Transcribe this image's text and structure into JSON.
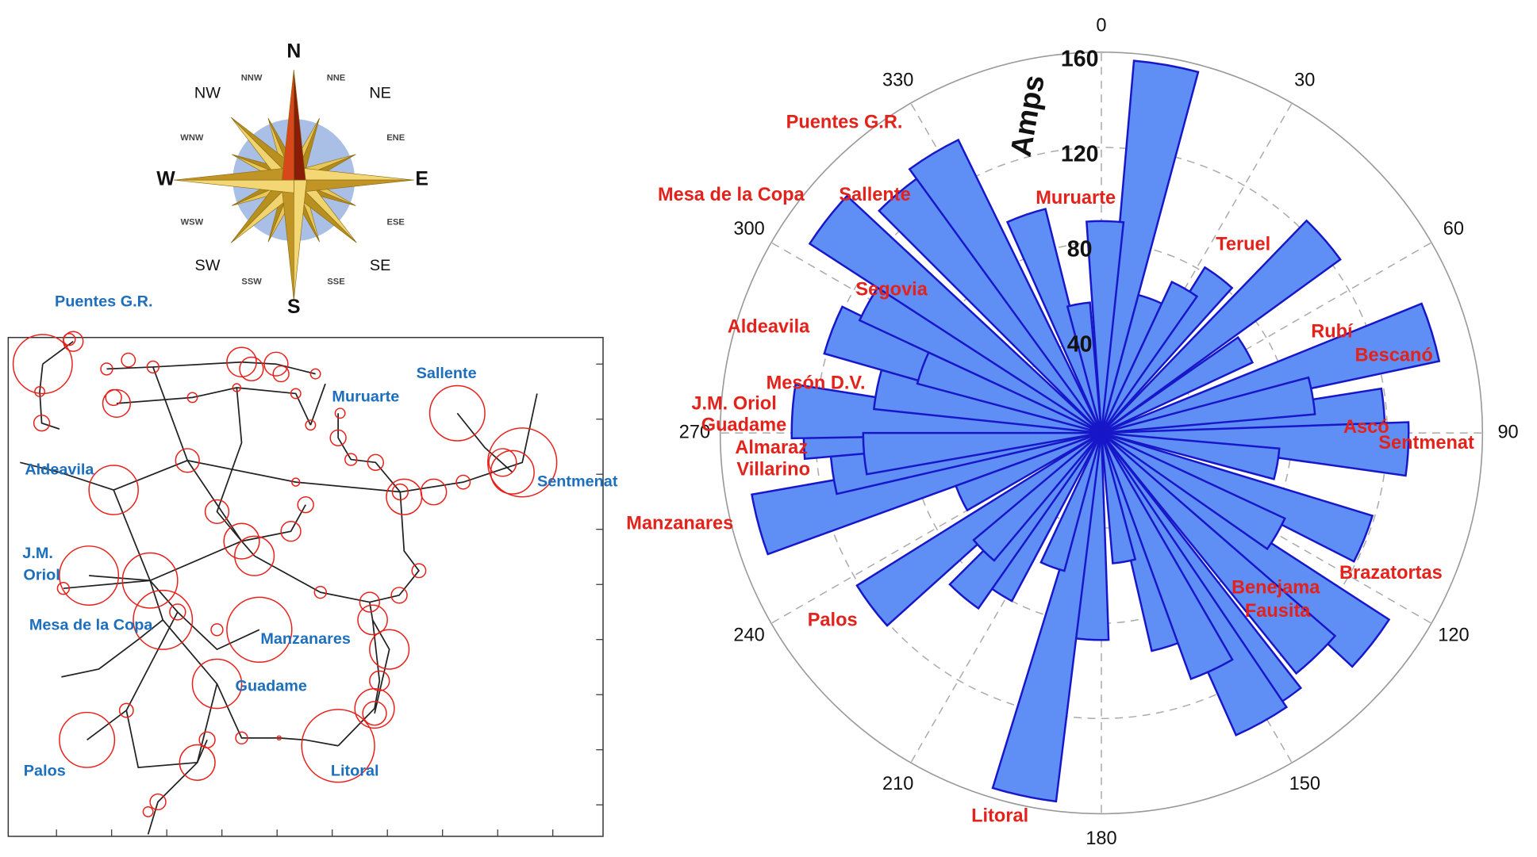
{
  "compass": {
    "labels": [
      "N",
      "NNE",
      "NE",
      "ENE",
      "E",
      "ESE",
      "SE",
      "SSE",
      "S",
      "SSW",
      "SW",
      "WSW",
      "W",
      "WNW",
      "NW",
      "NNW"
    ]
  },
  "map": {
    "labels": [
      "Puentes G.R.",
      "Muruarte",
      "Sallente",
      "Aldeavila",
      "Sentmenat",
      "J.M.",
      "Oriol",
      "Mesa de la Copa",
      "Manzanares",
      "Guadame",
      "Palos",
      "Litoral"
    ]
  },
  "chart_data": {
    "type": "polar_bar",
    "r_label": "Amps",
    "theta": [
      10,
      1,
      37,
      49,
      73,
      86,
      93,
      112,
      128,
      136,
      147,
      151,
      162,
      183,
      192,
      213,
      233,
      255,
      262,
      270,
      274,
      281,
      291,
      300,
      308,
      320,
      329,
      341,
      20,
      30,
      60,
      80,
      100,
      120,
      155,
      170,
      200,
      220,
      225,
      245,
      265,
      290,
      350
    ],
    "values": [
      157,
      89,
      82,
      124,
      145,
      119,
      129,
      119,
      144,
      130,
      136,
      139,
      94,
      87,
      156,
      80,
      121,
      149,
      114,
      125,
      130,
      96,
      121,
      112,
      146,
      132,
      137,
      97,
      60,
      70,
      70,
      90,
      75,
      85,
      110,
      55,
      60,
      90,
      70,
      65,
      100,
      80,
      55
    ],
    "color": "#5f8ef5",
    "edgecolor": "#1717c9",
    "rlim": [
      0,
      160
    ],
    "rticks": [
      40,
      80,
      120,
      160
    ],
    "thetaticks": [
      0,
      30,
      60,
      90,
      120,
      150,
      180,
      210,
      240,
      270,
      300,
      330
    ],
    "grid": true,
    "annotation_color": "#e3221b",
    "annotations": [
      "Puentes G.R.",
      "Mesa de la Copa",
      "Sallente",
      "Muruarte",
      "Teruel",
      "Segovia",
      "Aldeavila",
      "Rubí",
      "Bescanó",
      "Mesón D.V.",
      "J.M. Oriol",
      "Guadame",
      "Ascó",
      "Sentmenat",
      "Almaraz",
      "Villarino",
      "Manzanares",
      "Brazatortas",
      "Benejama",
      "Fausita",
      "Palos",
      "Litoral"
    ]
  }
}
